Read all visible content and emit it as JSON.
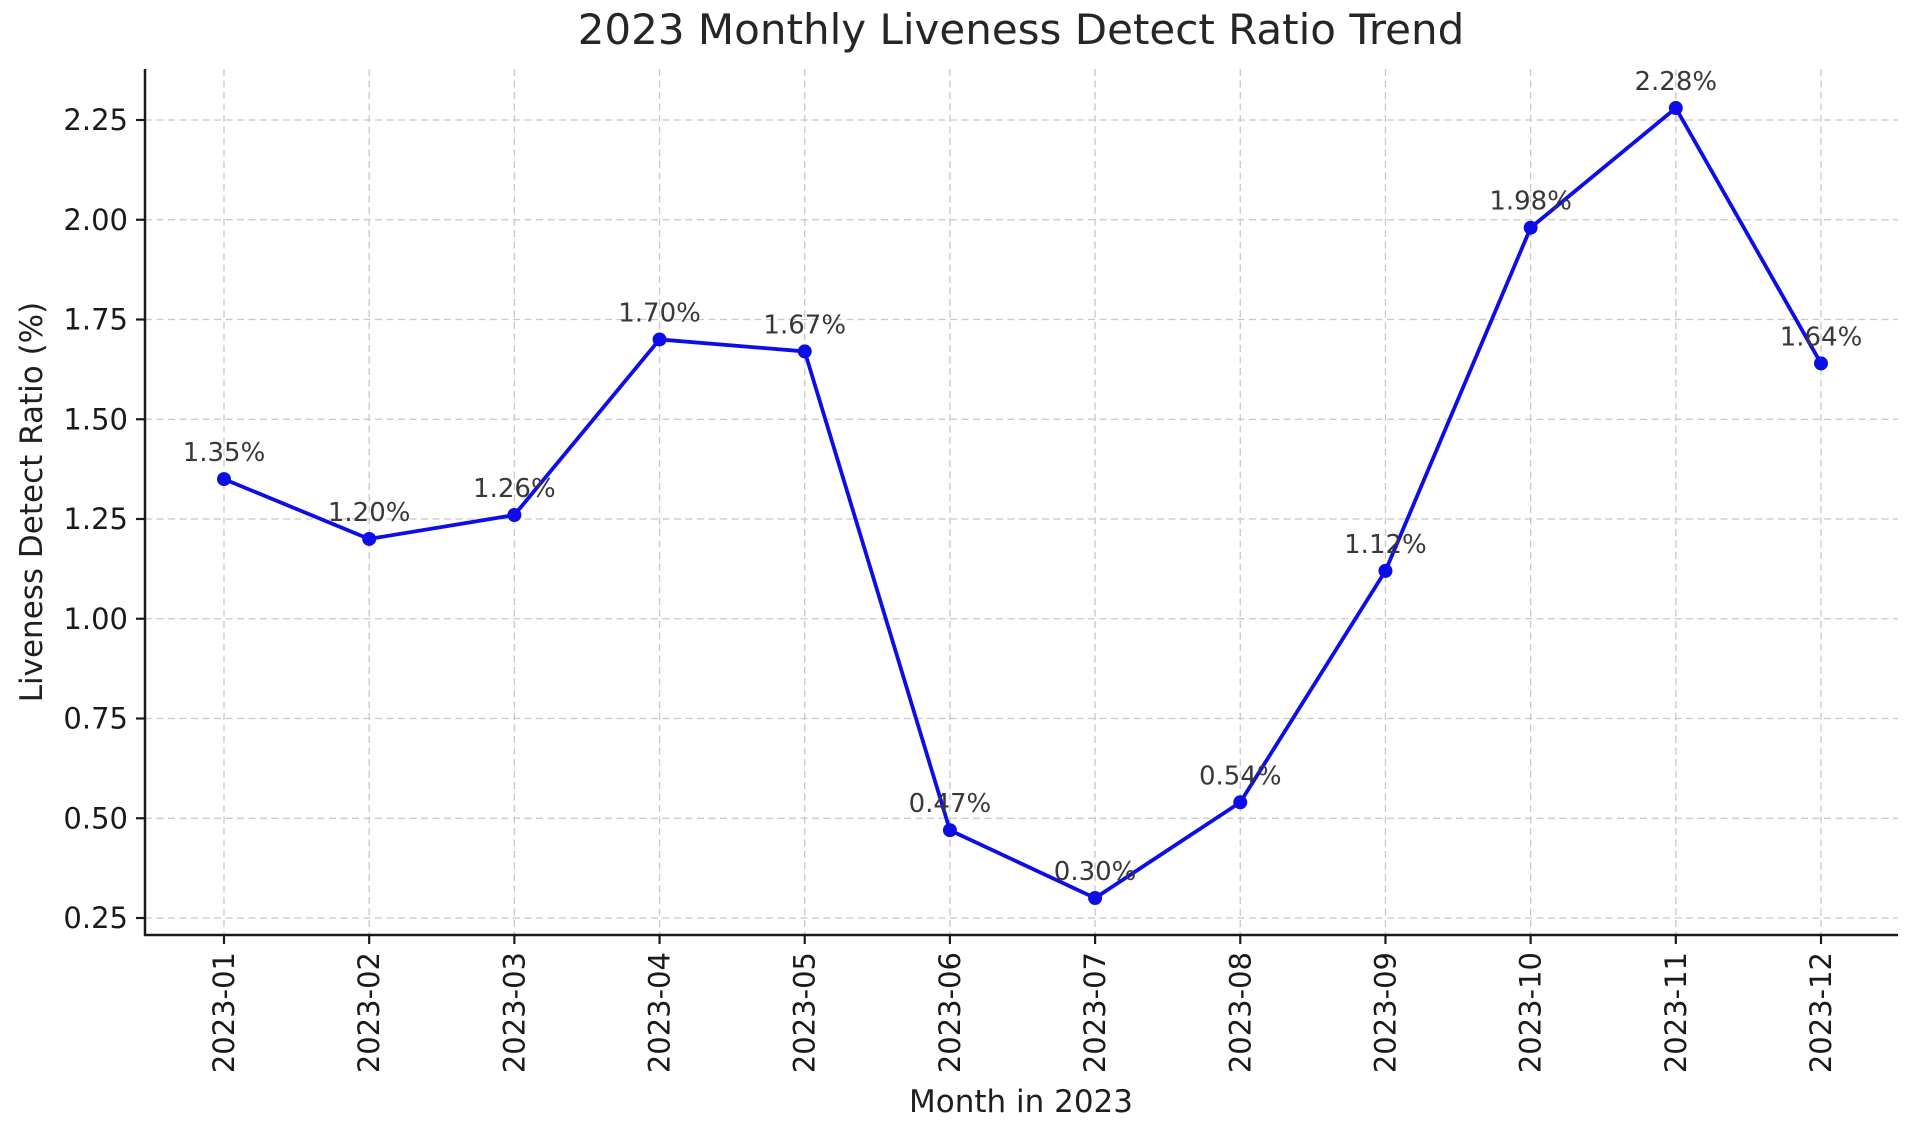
{
  "chart_data": {
    "type": "line",
    "title": "2023 Monthly Liveness Detect Ratio Trend",
    "xlabel": "Month in 2023",
    "ylabel": "Liveness Detect Ratio (%)",
    "categories": [
      "2023-01",
      "2023-02",
      "2023-03",
      "2023-04",
      "2023-05",
      "2023-06",
      "2023-07",
      "2023-08",
      "2023-09",
      "2023-10",
      "2023-11",
      "2023-12"
    ],
    "values": [
      1.35,
      1.2,
      1.26,
      1.7,
      1.67,
      0.47,
      0.3,
      0.54,
      1.12,
      1.98,
      2.28,
      1.64
    ],
    "point_labels": [
      "1.35%",
      "1.20%",
      "1.26%",
      "1.70%",
      "1.67%",
      "0.47%",
      "0.30%",
      "0.54%",
      "1.12%",
      "1.98%",
      "2.28%",
      "1.64%"
    ],
    "yticks": [
      0.25,
      0.5,
      0.75,
      1.0,
      1.25,
      1.5,
      1.75,
      2.0,
      2.25
    ],
    "ytick_labels": [
      "0.25",
      "0.50",
      "0.75",
      "1.00",
      "1.25",
      "1.50",
      "1.75",
      "2.00",
      "2.25"
    ],
    "ylim": [
      0.21,
      2.38
    ],
    "grid": true,
    "grid_style": "dashed",
    "legend_position": "none",
    "marker": "circle",
    "colors": {
      "line": "#0d0de8",
      "marker": "#0d0de8",
      "grid": "#c8c8c8",
      "spine": "#1a1a1a",
      "tick_text": "#1a1a1a",
      "annotation_text": "#383838",
      "title_text": "#262626",
      "background": "#ffffff"
    }
  }
}
